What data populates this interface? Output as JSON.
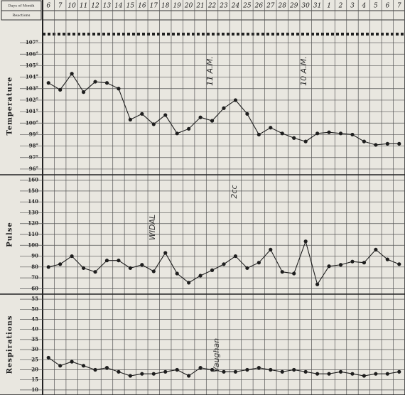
{
  "header": {
    "days_label": "Days of Month",
    "reactions_label": "Reactions"
  },
  "annotations": [
    "WIDAL",
    "11 A.M.",
    "2cc",
    "Vaughan",
    "10 A.M."
  ],
  "chart_data": [
    {
      "type": "line",
      "title": "Temperature",
      "categories": [
        "6",
        "7",
        "10",
        "11",
        "12",
        "13",
        "14",
        "15",
        "16",
        "17",
        "18",
        "19",
        "20",
        "21",
        "22",
        "23",
        "24",
        "25",
        "26",
        "27",
        "28",
        "29",
        "30",
        "31",
        "1",
        "2",
        "3",
        "4",
        "5",
        "6",
        "7"
      ],
      "series": [
        {
          "name": "Temperature",
          "color": "#1e1e1e",
          "values": [
            103.5,
            102.9,
            104.3,
            102.7,
            103.6,
            103.5,
            103,
            100.3,
            100.8,
            99.9,
            100.7,
            99.1,
            99.5,
            100.5,
            100.2,
            101.3,
            102,
            100.8,
            99,
            99.6,
            99.1,
            98.7,
            98.4,
            99.1,
            99.2,
            99.1,
            99,
            98.4,
            98.1,
            98.2,
            98.2
          ]
        }
      ],
      "ylim": [
        95.5,
        107.5
      ],
      "yticks": [
        {
          "value": 96,
          "label": "96°"
        },
        {
          "value": 97,
          "label": "97°"
        },
        {
          "value": 98,
          "label": "98°"
        },
        {
          "value": 99,
          "label": "99°"
        },
        {
          "value": 100,
          "label": "100°"
        },
        {
          "value": 101,
          "label": "101°"
        },
        {
          "value": 102,
          "label": "102°"
        },
        {
          "value": 103,
          "label": "103°"
        },
        {
          "value": 104,
          "label": "104°"
        },
        {
          "value": 105,
          "label": "105°"
        },
        {
          "value": 106,
          "label": "106°"
        },
        {
          "value": 107,
          "label": "107°"
        }
      ],
      "grid": true
    },
    {
      "type": "line",
      "title": "Pulse",
      "series": [
        {
          "name": "Pulse",
          "color": "#1e1e1e",
          "values": [
            80,
            82.6,
            90,
            79,
            75.5,
            86,
            86,
            79,
            82,
            76,
            93,
            74,
            65.5,
            72,
            77,
            82.6,
            90,
            79,
            84,
            96,
            75.5,
            74,
            103.6,
            64,
            80.7,
            82,
            85,
            84,
            96,
            87,
            82.6
          ]
        }
      ],
      "ylim": [
        55,
        165
      ],
      "yticks": [
        60,
        70,
        80,
        90,
        100,
        110,
        120,
        130,
        140,
        150,
        160
      ],
      "grid": true
    },
    {
      "type": "line",
      "title": "Respirations",
      "series": [
        {
          "name": "Respirations",
          "color": "#1e1e1e",
          "values": [
            26,
            22,
            24,
            22,
            20,
            21,
            19,
            17,
            18,
            18,
            19,
            20,
            17,
            21,
            20,
            19,
            19,
            20,
            21,
            20,
            19,
            20,
            19,
            18,
            18,
            19,
            18,
            17,
            18,
            18,
            19
          ]
        }
      ],
      "ylim": [
        7.5,
        57.5
      ],
      "yticks": [
        10,
        15,
        20,
        25,
        30,
        35,
        40,
        45,
        50,
        55
      ],
      "grid": true
    }
  ]
}
